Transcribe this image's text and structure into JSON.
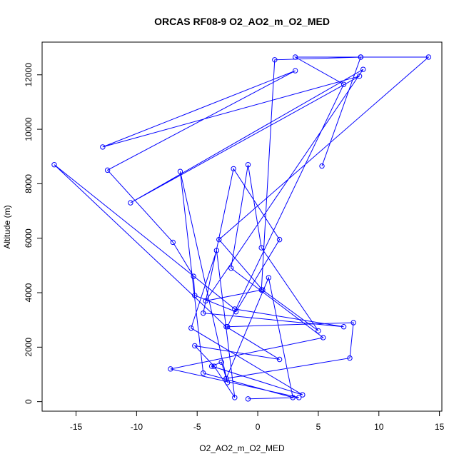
{
  "chart_data": {
    "type": "line",
    "title": "ORCAS RF08-9 O2_AO2_m_O2_MED",
    "xlabel": "O2_AO2_m_O2_MED",
    "ylabel": "Altitude (m)",
    "xlim": [
      -17.8,
      15.2
    ],
    "ylim": [
      -350,
      13200
    ],
    "xticks": [
      -15,
      -10,
      -5,
      0,
      5,
      10,
      15
    ],
    "yticks": [
      0,
      2000,
      4000,
      6000,
      8000,
      10000,
      12000
    ],
    "grid": false,
    "series_color": "#0000ff",
    "series": [
      {
        "points": [
          [
            -0.8,
            100
          ],
          [
            3.4,
            150
          ],
          [
            -7.2,
            1200
          ],
          [
            5.4,
            2350
          ],
          [
            -2.2,
            4900
          ],
          [
            -0.8,
            8700
          ],
          [
            0.3,
            5650
          ],
          [
            5.0,
            2600
          ],
          [
            0.4,
            4100
          ],
          [
            -3.2,
            5950
          ],
          [
            14.1,
            12650
          ],
          [
            8.5,
            12650
          ],
          [
            1.4,
            12550
          ],
          [
            0.3,
            4100
          ],
          [
            -4.3,
            3700
          ],
          [
            8.7,
            12200
          ],
          [
            -10.5,
            7300
          ],
          [
            8.4,
            11950
          ],
          [
            -12.8,
            9350
          ],
          [
            3.1,
            12150
          ],
          [
            -12.4,
            8500
          ],
          [
            -7.0,
            5850
          ],
          [
            -5.3,
            4600
          ],
          [
            -5.2,
            3900
          ],
          [
            -1.8,
            3300
          ],
          [
            1.8,
            5950
          ],
          [
            -2.0,
            8550
          ],
          [
            -4.5,
            3250
          ],
          [
            7.1,
            2750
          ],
          [
            -1.9,
            3400
          ],
          [
            -16.8,
            8700
          ],
          [
            -2.6,
            2750
          ],
          [
            1.8,
            1550
          ],
          [
            -5.2,
            2050
          ],
          [
            -3.6,
            1300
          ],
          [
            -1.9,
            150
          ],
          [
            -3.4,
            5550
          ],
          [
            -5.5,
            2700
          ],
          [
            3.7,
            250
          ],
          [
            -3.8,
            1300
          ],
          [
            -3.0,
            1450
          ],
          [
            -2.5,
            700
          ],
          [
            -6.4,
            8450
          ],
          [
            -4.5,
            1050
          ],
          [
            2.9,
            150
          ],
          [
            0.9,
            4550
          ],
          [
            -2.6,
            850
          ],
          [
            7.6,
            1600
          ],
          [
            7.9,
            2900
          ],
          [
            -2.5,
            2750
          ],
          [
            7.1,
            11650
          ],
          [
            3.1,
            12650
          ],
          [
            8.5,
            12650
          ],
          [
            5.3,
            8650
          ]
        ]
      }
    ]
  }
}
